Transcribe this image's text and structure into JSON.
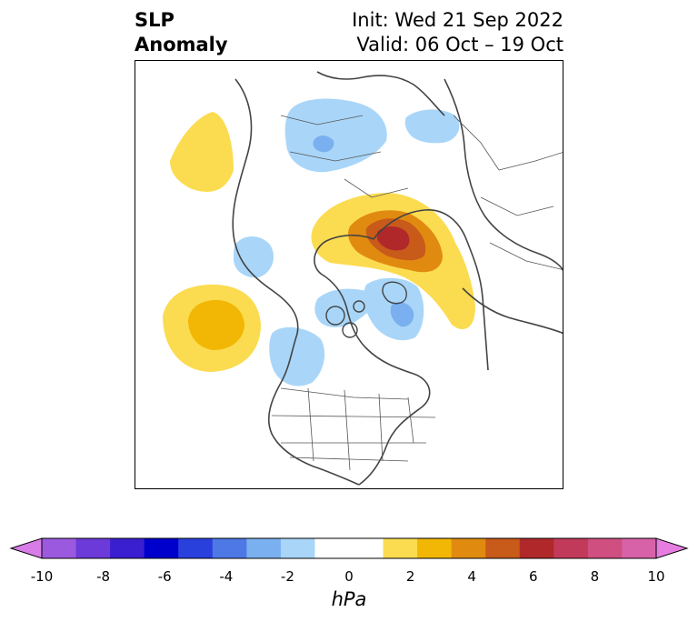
{
  "title": {
    "line1": "SLP",
    "line2": "Anomaly",
    "init": "Init: Wed 21 Sep 2022",
    "valid": "Valid: 06 Oct – 19 Oct"
  },
  "colorbar": {
    "units": "hPa",
    "ticks": [
      "-10",
      "-8",
      "-6",
      "-4",
      "-2",
      "0",
      "2",
      "4",
      "6",
      "8",
      "10"
    ],
    "colors": [
      "#9b59e0",
      "#6b3ad8",
      "#3a1fd0",
      "#0000cc",
      "#2a40dd",
      "#4d78e6",
      "#7ab0f0",
      "#a9d6f8",
      "#ffffff",
      "#ffffff",
      "#fbdc50",
      "#f2b705",
      "#e08b10",
      "#c85a1a",
      "#b0282a",
      "#c23a5a",
      "#cf4f80",
      "#d862a8"
    ],
    "low_extend": "#d87de8",
    "high_extend": "#e77de0"
  }
}
